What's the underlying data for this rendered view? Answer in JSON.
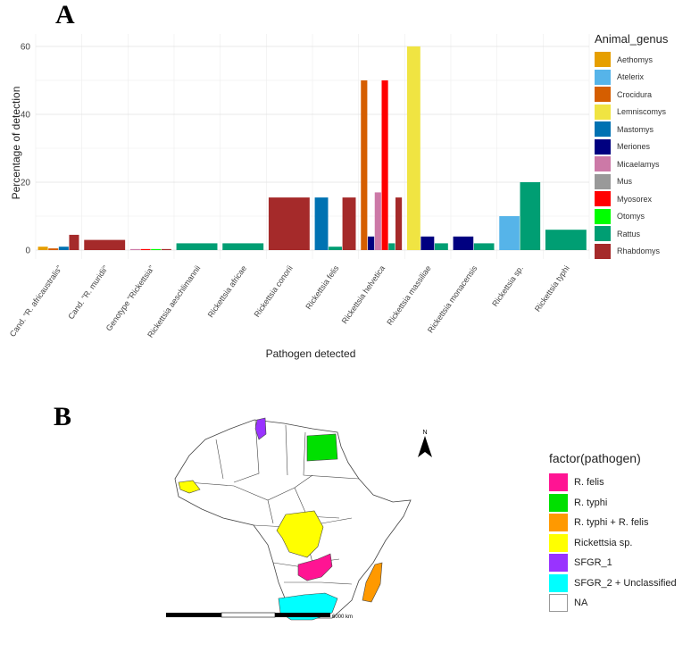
{
  "panel_a": {
    "letter": "A"
  },
  "panel_b": {
    "letter": "B"
  },
  "chart_data": {
    "type": "bar",
    "title": "",
    "xlabel": "Pathogen detected",
    "ylabel": "Percentage of detection",
    "ylim": [
      0,
      63
    ],
    "yticks": [
      0,
      20,
      40,
      60
    ],
    "grid": true,
    "legend_position": "right",
    "legend_title": "Animal_genus",
    "categories": [
      "Cand. \"R. africaustralis\"",
      "Cand. \"R. muridii\"",
      "Genotype \"Rickettsia\"",
      "Rickettsia aeschlimannii",
      "Rickettsia africae",
      "Rickettsia conorii",
      "Rickettsia felis",
      "Rickettsia helvetica",
      "Rickettsia massiliae",
      "Rickettsia monacensis",
      "Rickettsia sp.",
      "Rickettsia typhi"
    ],
    "series": [
      {
        "name": "Aethomys",
        "color": "#E69F00",
        "values": [
          1,
          null,
          null,
          null,
          null,
          null,
          null,
          null,
          null,
          null,
          null,
          null
        ]
      },
      {
        "name": "Atelerix",
        "color": "#56B4E9",
        "values": [
          null,
          null,
          null,
          null,
          null,
          null,
          null,
          null,
          null,
          null,
          10,
          null
        ]
      },
      {
        "name": "Crocidura",
        "color": "#D55E00",
        "values": [
          0.5,
          null,
          null,
          null,
          null,
          null,
          null,
          50,
          null,
          null,
          null,
          null
        ]
      },
      {
        "name": "Lemniscomys",
        "color": "#F0E442",
        "values": [
          null,
          null,
          null,
          null,
          null,
          null,
          null,
          null,
          60,
          null,
          null,
          null
        ]
      },
      {
        "name": "Mastomys",
        "color": "#0072B2",
        "values": [
          1,
          null,
          null,
          null,
          null,
          null,
          15.5,
          null,
          null,
          null,
          null,
          null
        ]
      },
      {
        "name": "Meriones",
        "color": "#000080",
        "values": [
          null,
          null,
          null,
          null,
          null,
          null,
          null,
          4,
          4,
          4,
          null,
          null
        ]
      },
      {
        "name": "Micaelamys",
        "color": "#CC79A7",
        "values": [
          null,
          null,
          0.3,
          null,
          null,
          null,
          null,
          17,
          null,
          null,
          null,
          null
        ]
      },
      {
        "name": "Mus",
        "color": "#999999",
        "values": [
          null,
          null,
          null,
          null,
          null,
          null,
          null,
          null,
          null,
          null,
          null,
          null
        ]
      },
      {
        "name": "Myosorex",
        "color": "#FF0000",
        "values": [
          null,
          null,
          0.3,
          null,
          null,
          null,
          null,
          50,
          null,
          null,
          null,
          null
        ]
      },
      {
        "name": "Otomys",
        "color": "#00FF00",
        "values": [
          null,
          null,
          0.3,
          null,
          null,
          null,
          null,
          null,
          null,
          null,
          null,
          null
        ]
      },
      {
        "name": "Rattus",
        "color": "#009E73",
        "values": [
          null,
          null,
          null,
          2,
          2,
          null,
          1,
          2,
          2,
          2,
          20,
          6
        ]
      },
      {
        "name": "Rhabdomys",
        "color": "#A52A2A",
        "values": [
          4.5,
          3,
          0.3,
          null,
          null,
          15.5,
          15.5,
          15.5,
          null,
          null,
          null,
          null
        ]
      }
    ]
  },
  "map": {
    "legend_title": "factor(pathogen)",
    "legend": [
      {
        "label": "R. felis",
        "color": "#FF1493"
      },
      {
        "label": "R. typhi",
        "color": "#00E000"
      },
      {
        "label": "R. typhi + R. felis",
        "color": "#FF9900"
      },
      {
        "label": "Rickettsia sp.",
        "color": "#FFFF00"
      },
      {
        "label": "SFGR_1",
        "color": "#9933FF"
      },
      {
        "label": "SFGR_2 + Unclassified",
        "color": "#00FFFF"
      },
      {
        "label": "NA",
        "color": "#FFFFFF"
      }
    ],
    "north_label": "N",
    "scale_label": "6000 km"
  }
}
